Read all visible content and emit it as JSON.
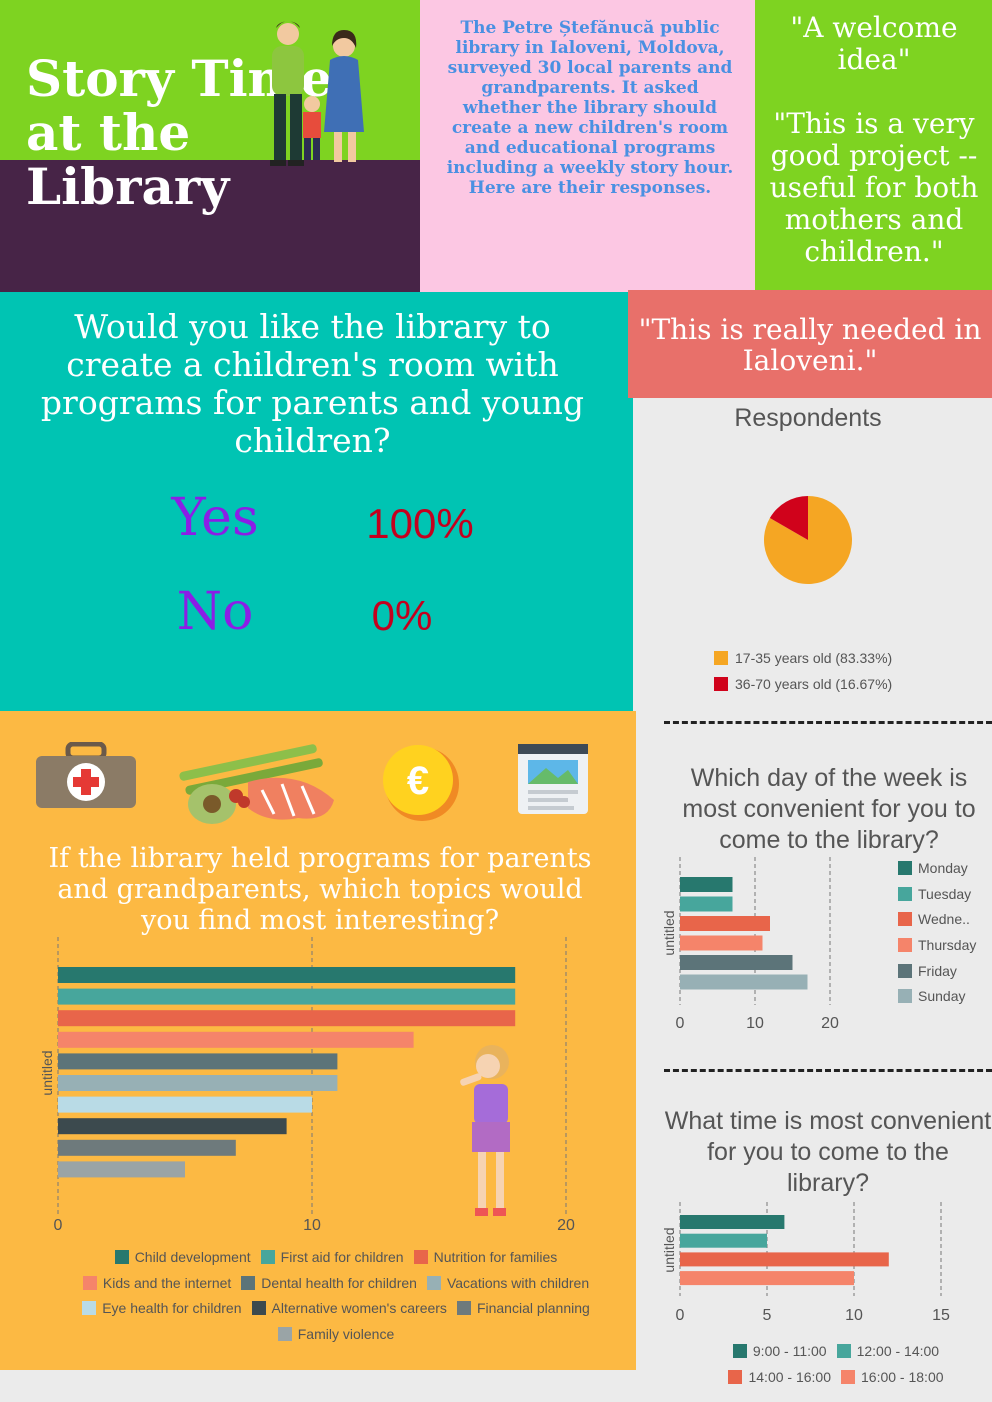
{
  "header": {
    "title": "Story Time at the Library",
    "intro": "The Petre Ștefănucă public library in Ialoveni, Moldova, surveyed 30 local parents and grandparents. It asked whether the library should create a new children's room and educational programs including a weekly story hour. Here are their responses.",
    "quote_1": "\"A welcome idea\"\n\n\"This is a very good project -- useful for both mothers and children.\""
  },
  "question_1": {
    "text": "Would you like the library to create a children's room with programs for parents and young children?",
    "yes_label": "Yes",
    "yes_value": "100%",
    "no_label": "No",
    "no_value": "0%"
  },
  "quote_2": "\"This is really needed in Ialoveni.\"",
  "respondents": {
    "title": "Respondents",
    "legend": [
      "17-35 years old (83.33%)",
      "36-70 years old (16.67%)"
    ]
  },
  "topics": {
    "question": "If the library held programs for parents and grandparents, which topics would you find most interesting?",
    "axis_label": "untitled",
    "legend": [
      "Child development",
      "First aid for children",
      "Nutrition for families",
      "Kids and the internet",
      "Dental health for children",
      "Vacations with children",
      "Eye health for children",
      "Alternative women's careers",
      "Financial planning",
      "Family violence"
    ]
  },
  "day_question": {
    "text": "Which day of the week is most convenient for you to come to the library?",
    "axis_label": "untitled",
    "legend": [
      "Monday",
      "Tuesday",
      "Wedne..",
      "Thursday",
      "Friday",
      "Sunday"
    ]
  },
  "time_question": {
    "text": "What time is most convenient for you to come to the library?",
    "axis_label": "untitled",
    "legend": [
      "9:00 - 11:00",
      "12:00 - 14:00",
      "14:00 - 16:00",
      "16:00 - 18:00"
    ]
  },
  "colors": {
    "teal_dark": "#27786e",
    "teal": "#47a69c",
    "coral": "#e8654a",
    "salmon": "#f5846a",
    "slate": "#5c7479",
    "gray_blue": "#97b0b5",
    "light_blue": "#b9dbe6",
    "charcoal": "#3c4a4e",
    "gray": "#6e7a7c",
    "light_gray": "#9aa4a6",
    "pie_orange": "#f5a623",
    "pie_red": "#d0021b"
  },
  "chart_data": [
    {
      "type": "pie",
      "title": "Respondents",
      "categories": [
        "17-35 years old (83.33%)",
        "36-70 years old (16.67%)"
      ],
      "values": [
        83.33,
        16.67
      ]
    },
    {
      "type": "bar",
      "orientation": "horizontal",
      "ylabel": "untitled",
      "categories": [
        "Child development",
        "First aid for children",
        "Nutrition for families",
        "Kids and the internet",
        "Dental health for children",
        "Vacations with children",
        "Eye health for children",
        "Alternative women's careers",
        "Financial planning",
        "Family violence"
      ],
      "values": [
        18,
        18,
        18,
        14,
        11,
        11,
        10,
        9,
        7,
        5
      ],
      "xticks": [
        0,
        10,
        20
      ],
      "xlim": [
        0,
        20
      ],
      "legend_position": "bottom"
    },
    {
      "type": "bar",
      "orientation": "horizontal",
      "ylabel": "untitled",
      "categories": [
        "Monday",
        "Tuesday",
        "Wedne..",
        "Thursday",
        "Friday",
        "Sunday"
      ],
      "values": [
        7,
        7,
        12,
        11,
        15,
        17
      ],
      "xticks": [
        0,
        10,
        20
      ],
      "xlim": [
        0,
        20
      ],
      "legend_position": "right"
    },
    {
      "type": "bar",
      "orientation": "horizontal",
      "ylabel": "untitled",
      "categories": [
        "9:00 - 11:00",
        "12:00 - 14:00",
        "14:00 - 16:00",
        "16:00 - 18:00"
      ],
      "values": [
        6,
        5,
        12,
        10
      ],
      "xticks": [
        0,
        5,
        10,
        15
      ],
      "xlim": [
        0,
        15
      ],
      "legend_position": "bottom"
    }
  ]
}
